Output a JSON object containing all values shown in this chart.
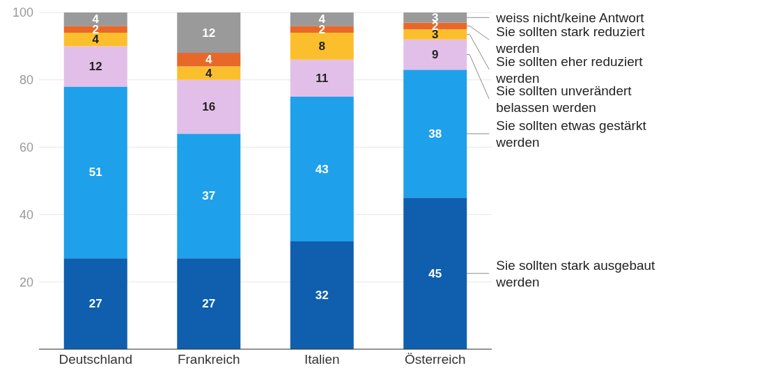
{
  "chart_data": {
    "type": "bar",
    "stacked": true,
    "categories": [
      "Deutschland",
      "Frankreich",
      "Italien",
      "Österreich"
    ],
    "series": [
      {
        "name": "Sie sollten stark ausgebaut werden",
        "color": "#0f5fae",
        "values": [
          27,
          27,
          32,
          45
        ]
      },
      {
        "name": "Sie sollten etwas gestärkt werden",
        "color": "#1fa0ea",
        "values": [
          51,
          37,
          43,
          38
        ]
      },
      {
        "name": "Sie sollten unverändert belassen werden",
        "color": "#e2bfe8",
        "values": [
          12,
          16,
          11,
          9
        ]
      },
      {
        "name": "Sie sollten eher reduziert werden",
        "color": "#fbbf2d",
        "values": [
          4,
          4,
          8,
          3
        ]
      },
      {
        "name": "Sie sollten stark reduziert werden",
        "color": "#e8682a",
        "values": [
          2,
          4,
          2,
          2
        ]
      },
      {
        "name": "weiss nicht/keine Antwort",
        "color": "#9a9a9a",
        "values": [
          4,
          12,
          4,
          3
        ]
      }
    ],
    "ylim": [
      0,
      100
    ],
    "yticks": [
      {
        "value": 0,
        "label": null
      },
      20,
      40,
      60,
      80,
      100
    ],
    "grid": "y",
    "legend": false,
    "data_labels": true
  }
}
